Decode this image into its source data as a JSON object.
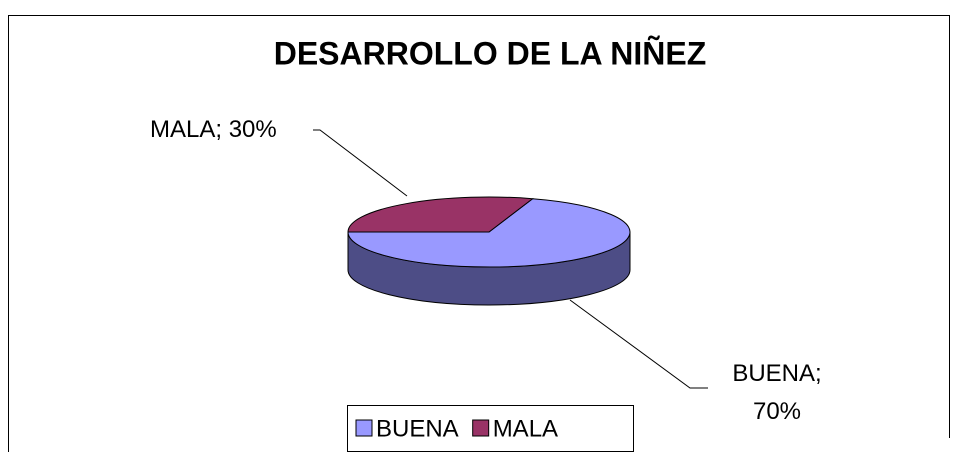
{
  "chart_data": {
    "type": "pie3d",
    "title": "DESARROLLO DE LA NIÑEZ",
    "categories": [
      "BUENA",
      "MALA"
    ],
    "values": [
      70,
      30
    ],
    "value_labels": [
      "BUENA; 70%",
      "MALA; 30%"
    ],
    "colors": [
      "#9999ff",
      "#993366"
    ],
    "side_colors": [
      "#4d4d86",
      "#5e2040"
    ],
    "legend": "bottom"
  }
}
